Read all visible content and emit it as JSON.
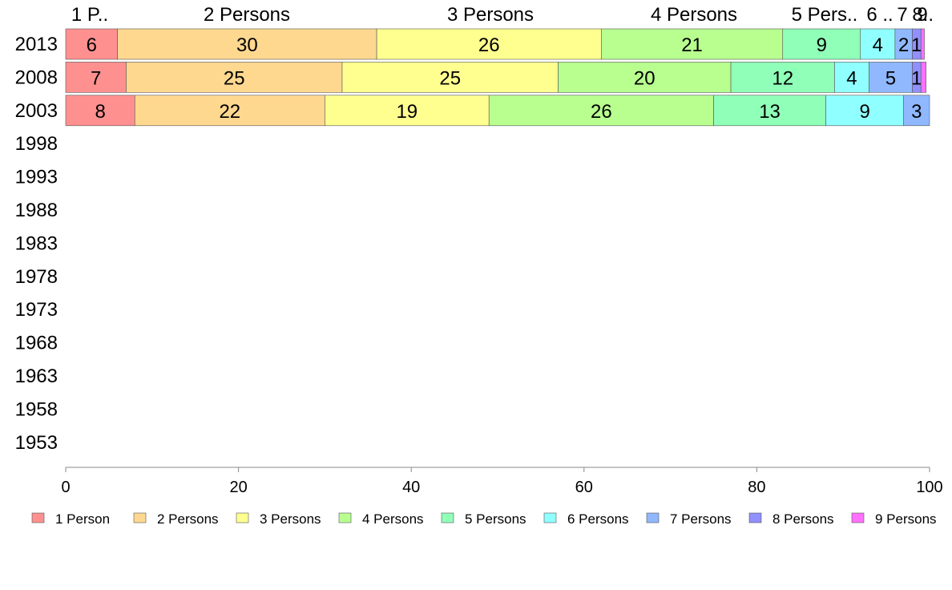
{
  "chart_data": {
    "type": "bar",
    "orientation": "horizontal",
    "stacked": "percent",
    "categories": [
      "2013",
      "2008",
      "2003",
      "1998",
      "1993",
      "1988",
      "1983",
      "1978",
      "1973",
      "1968",
      "1963",
      "1958",
      "1953"
    ],
    "series": [
      {
        "name": "1 Person",
        "color": "#ff9090",
        "values": [
          6,
          7,
          8,
          null,
          null,
          null,
          null,
          null,
          null,
          null,
          null,
          null,
          null
        ]
      },
      {
        "name": "2 Persons",
        "color": "#ffd890",
        "values": [
          30,
          25,
          22,
          null,
          null,
          null,
          null,
          null,
          null,
          null,
          null,
          null,
          null
        ]
      },
      {
        "name": "3 Persons",
        "color": "#ffff90",
        "values": [
          26,
          25,
          19,
          null,
          null,
          null,
          null,
          null,
          null,
          null,
          null,
          null,
          null
        ]
      },
      {
        "name": "4 Persons",
        "color": "#b8ff90",
        "values": [
          21,
          20,
          26,
          null,
          null,
          null,
          null,
          null,
          null,
          null,
          null,
          null,
          null
        ]
      },
      {
        "name": "5 Persons",
        "color": "#90ffb8",
        "values": [
          9,
          12,
          13,
          null,
          null,
          null,
          null,
          null,
          null,
          null,
          null,
          null,
          null
        ]
      },
      {
        "name": "6 Persons",
        "color": "#90ffff",
        "values": [
          4,
          4,
          9,
          null,
          null,
          null,
          null,
          null,
          null,
          null,
          null,
          null,
          null
        ]
      },
      {
        "name": "7 Persons",
        "color": "#90b8ff",
        "values": [
          2,
          5,
          3,
          null,
          null,
          null,
          null,
          null,
          null,
          null,
          null,
          null,
          null
        ]
      },
      {
        "name": "8 Persons",
        "color": "#9090ff",
        "values": [
          1,
          1,
          0.4,
          null,
          null,
          null,
          null,
          null,
          null,
          null,
          null,
          null,
          null
        ]
      },
      {
        "name": "9 Persons",
        "color": "#ff70ff",
        "values": [
          0.4,
          0.6,
          0.6,
          null,
          null,
          null,
          null,
          null,
          null,
          null,
          null,
          null,
          null
        ]
      }
    ],
    "top_labels": [
      "1 P..",
      "2 Persons",
      "3 Persons",
      "4 Persons",
      "5 Pers..",
      "6 ..",
      "7",
      "8",
      "9",
      "..."
    ],
    "x_ticks": [
      "0",
      "20",
      "40",
      "60",
      "80",
      "100"
    ],
    "xlim": [
      0,
      100
    ],
    "grid": false,
    "legend_position": "bottom"
  }
}
